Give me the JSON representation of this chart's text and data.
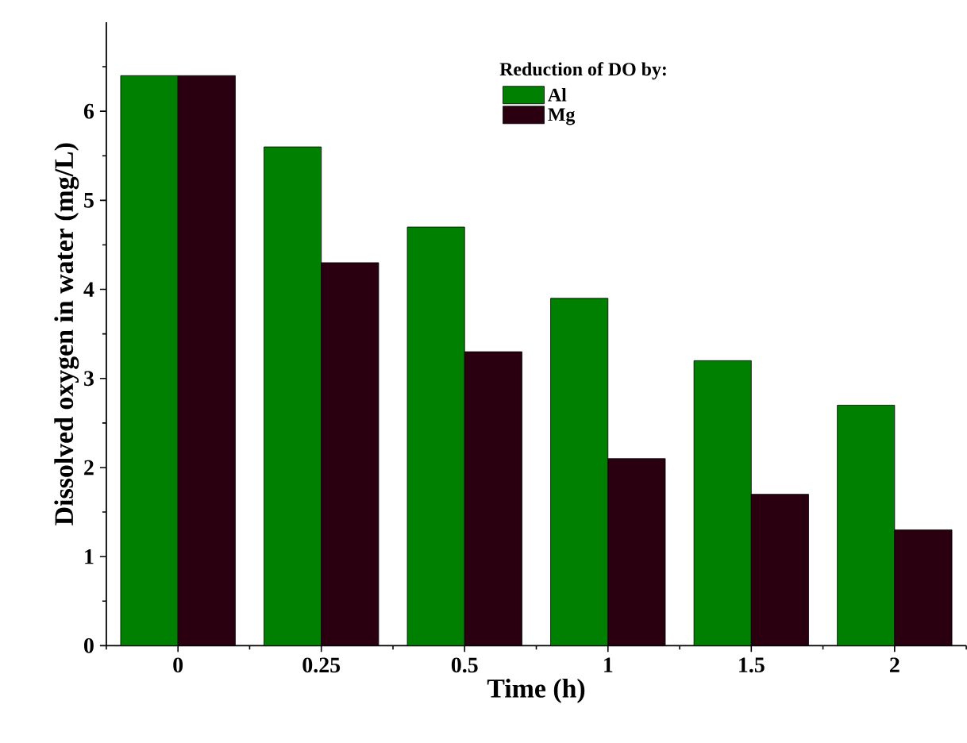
{
  "chart_data": {
    "type": "bar",
    "xlabel": "Time (h)",
    "ylabel": "Dissolved oxygen in water (mg/L)",
    "legend_title": "Reduction of DO by:",
    "categories": [
      "0",
      "0.25",
      "0.5",
      "1",
      "1.5",
      "2"
    ],
    "series": [
      {
        "name": "Al",
        "color": "#008000",
        "values": [
          6.4,
          5.6,
          4.7,
          3.9,
          3.2,
          2.7
        ]
      },
      {
        "name": "Mg",
        "color": "#2a0010",
        "values": [
          6.4,
          4.3,
          3.3,
          2.1,
          1.7,
          1.3
        ]
      }
    ],
    "ylim": [
      0,
      7
    ],
    "yticks": [
      0,
      1,
      2,
      3,
      4,
      5,
      6
    ],
    "grid": false,
    "legend": "top right"
  }
}
